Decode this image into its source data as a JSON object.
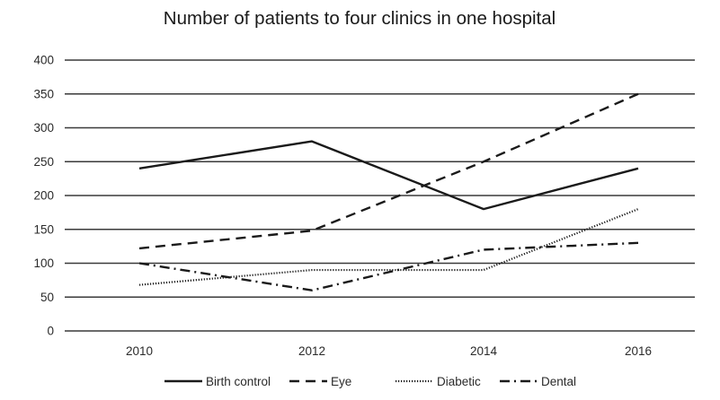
{
  "chart_data": {
    "type": "line",
    "title": "Number of patients to four clinics in one hospital",
    "xlabel": "",
    "ylabel": "",
    "categories": [
      "2010",
      "2012",
      "2014",
      "2016"
    ],
    "ylim": [
      0,
      400
    ],
    "yticks": [
      0,
      50,
      100,
      150,
      200,
      250,
      300,
      350,
      400
    ],
    "grid": true,
    "legend_position": "bottom",
    "series": [
      {
        "name": "Birth control",
        "style": "solid",
        "values": [
          240,
          280,
          180,
          240
        ]
      },
      {
        "name": "Eye",
        "style": "dashed",
        "values": [
          122,
          148,
          250,
          350
        ]
      },
      {
        "name": "Diabetic",
        "style": "dotted",
        "values": [
          68,
          90,
          90,
          180
        ]
      },
      {
        "name": "Dental",
        "style": "dash-dot",
        "values": [
          100,
          60,
          120,
          130
        ]
      }
    ],
    "colors": {
      "lines": "#1a1a1a",
      "grid": "#3a3a3a",
      "background": "#ffffff"
    }
  }
}
